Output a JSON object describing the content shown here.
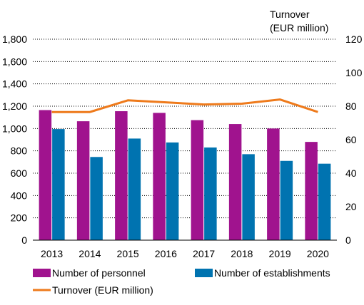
{
  "chart_data": {
    "type": "bar",
    "categories": [
      "2013",
      "2014",
      "2015",
      "2016",
      "2017",
      "2018",
      "2019",
      "2020"
    ],
    "series": [
      {
        "name": "Number of personnel",
        "type": "bar",
        "axis": "left",
        "color": "#a0138e",
        "values": [
          1165,
          1065,
          1155,
          1140,
          1075,
          1040,
          1000,
          880
        ]
      },
      {
        "name": "Number of establishments",
        "type": "bar",
        "axis": "left",
        "color": "#0073b0",
        "values": [
          995,
          745,
          910,
          875,
          830,
          770,
          710,
          685
        ]
      },
      {
        "name": "Turnover (EUR million)",
        "type": "line",
        "axis": "right",
        "color": "#ee7a1b",
        "values": [
          76.5,
          76.5,
          83.5,
          82.3,
          81.0,
          81.5,
          84.0,
          76.5
        ]
      }
    ],
    "y_left": {
      "min": 0,
      "max": 1800,
      "step": 200,
      "ticks": [
        "0",
        "200",
        "400",
        "600",
        "800",
        "1,000",
        "1,200",
        "1,400",
        "1,600",
        "1,800"
      ]
    },
    "y_right": {
      "min": 0,
      "max": 120,
      "step": 20,
      "title_lines": [
        "Turnover",
        "(EUR million)"
      ],
      "ticks": [
        "0",
        "20",
        "40",
        "60",
        "80",
        "100",
        "120"
      ]
    },
    "grid": true,
    "legend_position": "bottom"
  }
}
